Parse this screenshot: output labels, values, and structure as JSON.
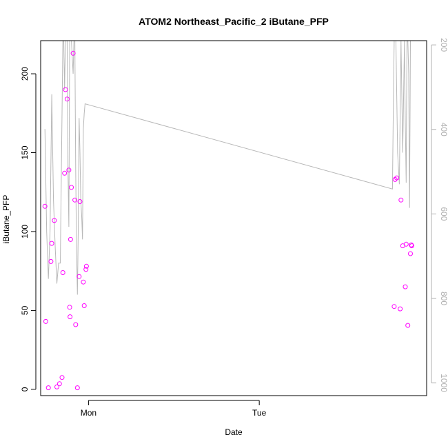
{
  "chart_data": {
    "type": "scatter",
    "title": "ATOM2 Northeast_Pacific_2 iButane_PFP",
    "xlabel": "Date",
    "ylabel": "iButane_PFP",
    "x_tick_labels": [
      "Mon",
      "Tue"
    ],
    "y_ticks": [
      0,
      50,
      100,
      150,
      200
    ],
    "y_tick_labels": [
      "0",
      "50",
      "100",
      "150",
      "200"
    ],
    "ylim": [
      -4,
      221
    ],
    "right_axis": {
      "color": "#b0b0b0",
      "reversed": true,
      "ticks": [
        200,
        400,
        600,
        800,
        1000
      ],
      "tick_labels": [
        "200",
        "400",
        "600",
        "800",
        "1000"
      ],
      "lim": [
        190,
        1030
      ]
    },
    "xlim": [
      -0.28,
      1.98
    ],
    "x_tick_positions": [
      0,
      1
    ],
    "series": [
      {
        "role": "points",
        "color": "#ff00ff",
        "marker": "open-circle",
        "points": [
          {
            "x": -0.255,
            "y": 116
          },
          {
            "x": -0.25,
            "y": 43
          },
          {
            "x": -0.235,
            "y": 1
          },
          {
            "x": -0.22,
            "y": 81
          },
          {
            "x": -0.215,
            "y": 92.5
          },
          {
            "x": -0.2,
            "y": 107
          },
          {
            "x": -0.185,
            "y": 1.5
          },
          {
            "x": -0.17,
            "y": 3.5
          },
          {
            "x": -0.155,
            "y": 7.5
          },
          {
            "x": -0.15,
            "y": 74
          },
          {
            "x": -0.14,
            "y": 137
          },
          {
            "x": -0.135,
            "y": 190
          },
          {
            "x": -0.125,
            "y": 184
          },
          {
            "x": -0.115,
            "y": 139
          },
          {
            "x": -0.11,
            "y": 52
          },
          {
            "x": -0.108,
            "y": 46
          },
          {
            "x": -0.105,
            "y": 95
          },
          {
            "x": -0.1,
            "y": 128
          },
          {
            "x": -0.09,
            "y": 213
          },
          {
            "x": -0.08,
            "y": 120
          },
          {
            "x": -0.075,
            "y": 41
          },
          {
            "x": -0.065,
            "y": 1
          },
          {
            "x": -0.055,
            "y": 71.5
          },
          {
            "x": -0.05,
            "y": 119
          },
          {
            "x": -0.03,
            "y": 68
          },
          {
            "x": -0.025,
            "y": 53
          },
          {
            "x": -0.015,
            "y": 76
          },
          {
            "x": -0.012,
            "y": 78
          },
          {
            "x": 1.79,
            "y": 52.5
          },
          {
            "x": 1.795,
            "y": 133
          },
          {
            "x": 1.805,
            "y": 134
          },
          {
            "x": 1.825,
            "y": 51
          },
          {
            "x": 1.83,
            "y": 120
          },
          {
            "x": 1.84,
            "y": 91
          },
          {
            "x": 1.855,
            "y": 65
          },
          {
            "x": 1.86,
            "y": 92
          },
          {
            "x": 1.87,
            "y": 40.5
          },
          {
            "x": 1.885,
            "y": 86
          },
          {
            "x": 1.89,
            "y": 91.5
          },
          {
            "x": 1.893,
            "y": 91
          }
        ]
      },
      {
        "role": "line",
        "color": "#b8b8b8",
        "points": [
          {
            "x": -0.255,
            "y": 165
          },
          {
            "x": -0.245,
            "y": 100
          },
          {
            "x": -0.235,
            "y": 70
          },
          {
            "x": -0.225,
            "y": 100
          },
          {
            "x": -0.215,
            "y": 187
          },
          {
            "x": -0.205,
            "y": 120
          },
          {
            "x": -0.195,
            "y": 90
          },
          {
            "x": -0.185,
            "y": 67
          },
          {
            "x": -0.175,
            "y": 80
          },
          {
            "x": -0.165,
            "y": 80
          },
          {
            "x": -0.155,
            "y": 175
          },
          {
            "x": -0.15,
            "y": 221
          },
          {
            "x": -0.145,
            "y": 221
          },
          {
            "x": -0.14,
            "y": 190
          },
          {
            "x": -0.135,
            "y": 221
          },
          {
            "x": -0.125,
            "y": 221
          },
          {
            "x": -0.12,
            "y": 140
          },
          {
            "x": -0.115,
            "y": 103
          },
          {
            "x": -0.11,
            "y": 221
          },
          {
            "x": -0.1,
            "y": 221
          },
          {
            "x": -0.09,
            "y": 200
          },
          {
            "x": -0.085,
            "y": 221
          },
          {
            "x": -0.08,
            "y": 221
          },
          {
            "x": -0.075,
            "y": 140
          },
          {
            "x": -0.07,
            "y": 90
          },
          {
            "x": -0.065,
            "y": 60
          },
          {
            "x": -0.06,
            "y": 100
          },
          {
            "x": -0.055,
            "y": 172
          },
          {
            "x": -0.05,
            "y": 150
          },
          {
            "x": -0.045,
            "y": 120
          },
          {
            "x": -0.04,
            "y": 110
          },
          {
            "x": -0.035,
            "y": 95
          },
          {
            "x": -0.03,
            "y": 165
          },
          {
            "x": -0.025,
            "y": 175
          },
          {
            "x": -0.02,
            "y": 181
          },
          {
            "x": 1.78,
            "y": 127
          },
          {
            "x": 1.785,
            "y": 180
          },
          {
            "x": 1.79,
            "y": 221
          },
          {
            "x": 1.795,
            "y": 221
          },
          {
            "x": 1.8,
            "y": 221
          },
          {
            "x": 1.81,
            "y": 150
          },
          {
            "x": 1.82,
            "y": 130
          },
          {
            "x": 1.83,
            "y": 221
          },
          {
            "x": 1.84,
            "y": 150
          },
          {
            "x": 1.85,
            "y": 221
          },
          {
            "x": 1.855,
            "y": 170
          },
          {
            "x": 1.86,
            "y": 131
          },
          {
            "x": 1.865,
            "y": 221
          },
          {
            "x": 1.87,
            "y": 221
          },
          {
            "x": 1.875,
            "y": 200
          },
          {
            "x": 1.88,
            "y": 115
          },
          {
            "x": 1.885,
            "y": 221
          },
          {
            "x": 1.895,
            "y": 221
          }
        ]
      }
    ]
  }
}
